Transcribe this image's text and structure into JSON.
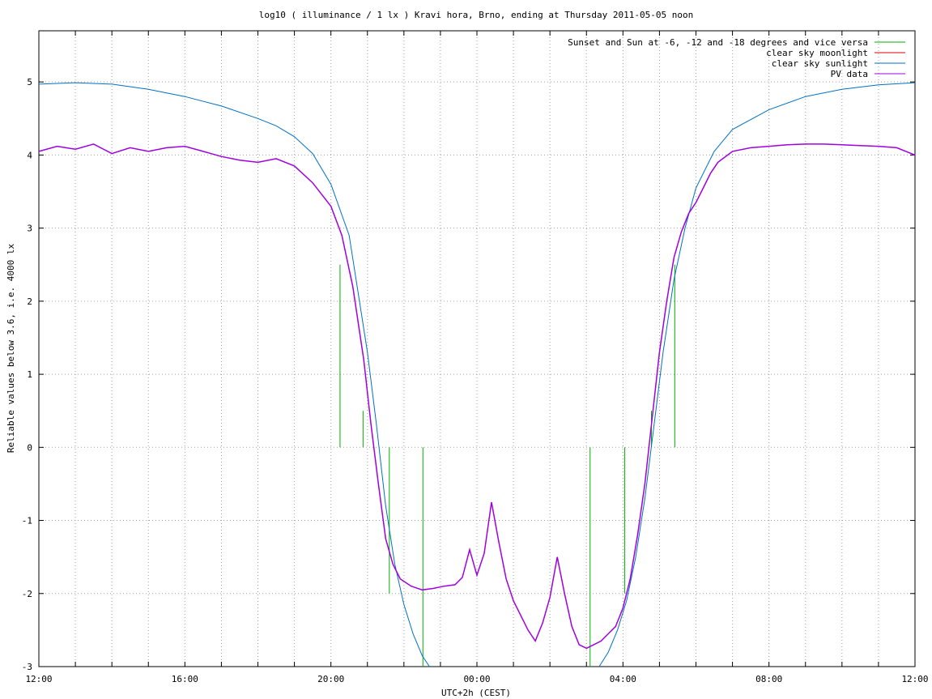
{
  "chart_data": {
    "type": "line",
    "title": "log10 ( illuminance / 1 lx ) Kravi hora, Brno, ending at Thursday 2011-05-05 noon",
    "xlabel": "UTC+2h (CEST)",
    "ylabel": "Reliable values below 3.6, i.e. 4000 lx",
    "x_ticks": [
      "12:00",
      "16:00",
      "20:00",
      "00:00",
      "04:00",
      "08:00",
      "12:00"
    ],
    "y_ticks": [
      "-3",
      "-2",
      "-1",
      "0",
      "1",
      "2",
      "3",
      "4",
      "5"
    ],
    "xlim_hours": [
      0,
      24
    ],
    "ylim": [
      -3,
      5.7
    ],
    "grid": true,
    "legend_position": "top-right",
    "colors": {
      "twilight": "#00b000",
      "moon": "#e00000",
      "sun": "#0070c8",
      "pv": "#a000e0",
      "grid": "#a0a0a0"
    },
    "legend": [
      {
        "label": "Sunset and Sun at -6, -12 and -18 degrees and vice versa",
        "key": "twilight"
      },
      {
        "label": "clear sky moonlight",
        "key": "moon"
      },
      {
        "label": "clear sky sunlight",
        "key": "sun"
      },
      {
        "label": "PV data",
        "key": "pv"
      }
    ],
    "twilight_markers": [
      {
        "x": 8.25,
        "y": 2.5
      },
      {
        "x": 8.88,
        "y": 0.5
      },
      {
        "x": 9.6,
        "y": -2.0
      },
      {
        "x": 10.52,
        "y": -3.0
      },
      {
        "x": 15.1,
        "y": -3.0
      },
      {
        "x": 16.05,
        "y": -2.0
      },
      {
        "x": 16.78,
        "y": 0.5
      },
      {
        "x": 17.42,
        "y": 2.5
      }
    ],
    "series": [
      {
        "name": "clear sky sunlight",
        "key": "sun",
        "points": [
          [
            0,
            4.97
          ],
          [
            1,
            4.99
          ],
          [
            2,
            4.97
          ],
          [
            3,
            4.9
          ],
          [
            4,
            4.8
          ],
          [
            5,
            4.67
          ],
          [
            6,
            4.5
          ],
          [
            6.5,
            4.4
          ],
          [
            7,
            4.25
          ],
          [
            7.5,
            4.02
          ],
          [
            8,
            3.6
          ],
          [
            8.5,
            2.9
          ],
          [
            9,
            1.3
          ],
          [
            9.25,
            0.3
          ],
          [
            9.5,
            -0.8
          ],
          [
            9.75,
            -1.6
          ],
          [
            10,
            -2.15
          ],
          [
            10.25,
            -2.55
          ],
          [
            10.5,
            -2.85
          ],
          [
            10.7,
            -3.0
          ]
        ]
      },
      {
        "name": "clear sky sunlight (morning)",
        "key": "sun",
        "points": [
          [
            15.35,
            -3.0
          ],
          [
            15.6,
            -2.8
          ],
          [
            15.85,
            -2.5
          ],
          [
            16.1,
            -2.1
          ],
          [
            16.35,
            -1.5
          ],
          [
            16.6,
            -0.7
          ],
          [
            16.85,
            0.3
          ],
          [
            17.1,
            1.3
          ],
          [
            17.4,
            2.3
          ],
          [
            17.7,
            3.0
          ],
          [
            18,
            3.55
          ],
          [
            18.5,
            4.05
          ],
          [
            19,
            4.35
          ],
          [
            20,
            4.62
          ],
          [
            21,
            4.8
          ],
          [
            22,
            4.9
          ],
          [
            23,
            4.96
          ],
          [
            24,
            4.99
          ]
        ]
      },
      {
        "name": "PV data",
        "key": "pv",
        "points": [
          [
            0,
            4.05
          ],
          [
            0.5,
            4.12
          ],
          [
            1,
            4.08
          ],
          [
            1.5,
            4.15
          ],
          [
            2,
            4.02
          ],
          [
            2.5,
            4.1
          ],
          [
            3,
            4.05
          ],
          [
            3.5,
            4.1
          ],
          [
            4,
            4.12
          ],
          [
            4.5,
            4.05
          ],
          [
            5,
            3.98
          ],
          [
            5.5,
            3.93
          ],
          [
            6,
            3.9
          ],
          [
            6.5,
            3.95
          ],
          [
            7,
            3.85
          ],
          [
            7.5,
            3.62
          ],
          [
            8,
            3.3
          ],
          [
            8.3,
            2.9
          ],
          [
            8.6,
            2.2
          ],
          [
            8.9,
            1.2
          ],
          [
            9.1,
            0.3
          ],
          [
            9.3,
            -0.5
          ],
          [
            9.5,
            -1.25
          ],
          [
            9.7,
            -1.6
          ],
          [
            9.9,
            -1.8
          ],
          [
            10.2,
            -1.9
          ],
          [
            10.5,
            -1.95
          ],
          [
            10.8,
            -1.93
          ],
          [
            11.1,
            -1.9
          ],
          [
            11.4,
            -1.88
          ],
          [
            11.6,
            -1.78
          ],
          [
            11.8,
            -1.4
          ],
          [
            12,
            -1.75
          ],
          [
            12.2,
            -1.45
          ],
          [
            12.4,
            -0.75
          ],
          [
            12.6,
            -1.3
          ],
          [
            12.8,
            -1.8
          ],
          [
            13,
            -2.1
          ],
          [
            13.2,
            -2.3
          ],
          [
            13.4,
            -2.5
          ],
          [
            13.6,
            -2.65
          ],
          [
            13.8,
            -2.4
          ],
          [
            14,
            -2.05
          ],
          [
            14.2,
            -1.5
          ],
          [
            14.4,
            -2.0
          ],
          [
            14.6,
            -2.45
          ],
          [
            14.8,
            -2.7
          ],
          [
            15,
            -2.75
          ],
          [
            15.2,
            -2.7
          ],
          [
            15.4,
            -2.65
          ],
          [
            15.6,
            -2.55
          ],
          [
            15.8,
            -2.45
          ],
          [
            16,
            -2.2
          ],
          [
            16.2,
            -1.8
          ],
          [
            16.4,
            -1.2
          ],
          [
            16.6,
            -0.5
          ],
          [
            16.8,
            0.4
          ],
          [
            17,
            1.3
          ],
          [
            17.2,
            2.0
          ],
          [
            17.4,
            2.6
          ],
          [
            17.6,
            2.95
          ],
          [
            17.8,
            3.2
          ],
          [
            18,
            3.35
          ],
          [
            18.2,
            3.55
          ],
          [
            18.4,
            3.75
          ],
          [
            18.6,
            3.9
          ],
          [
            19,
            4.05
          ],
          [
            19.5,
            4.1
          ],
          [
            20,
            4.12
          ],
          [
            20.5,
            4.14
          ],
          [
            21,
            4.15
          ],
          [
            21.5,
            4.15
          ],
          [
            22,
            4.14
          ],
          [
            22.5,
            4.13
          ],
          [
            23,
            4.12
          ],
          [
            23.5,
            4.1
          ],
          [
            24,
            4.0
          ]
        ]
      }
    ]
  }
}
